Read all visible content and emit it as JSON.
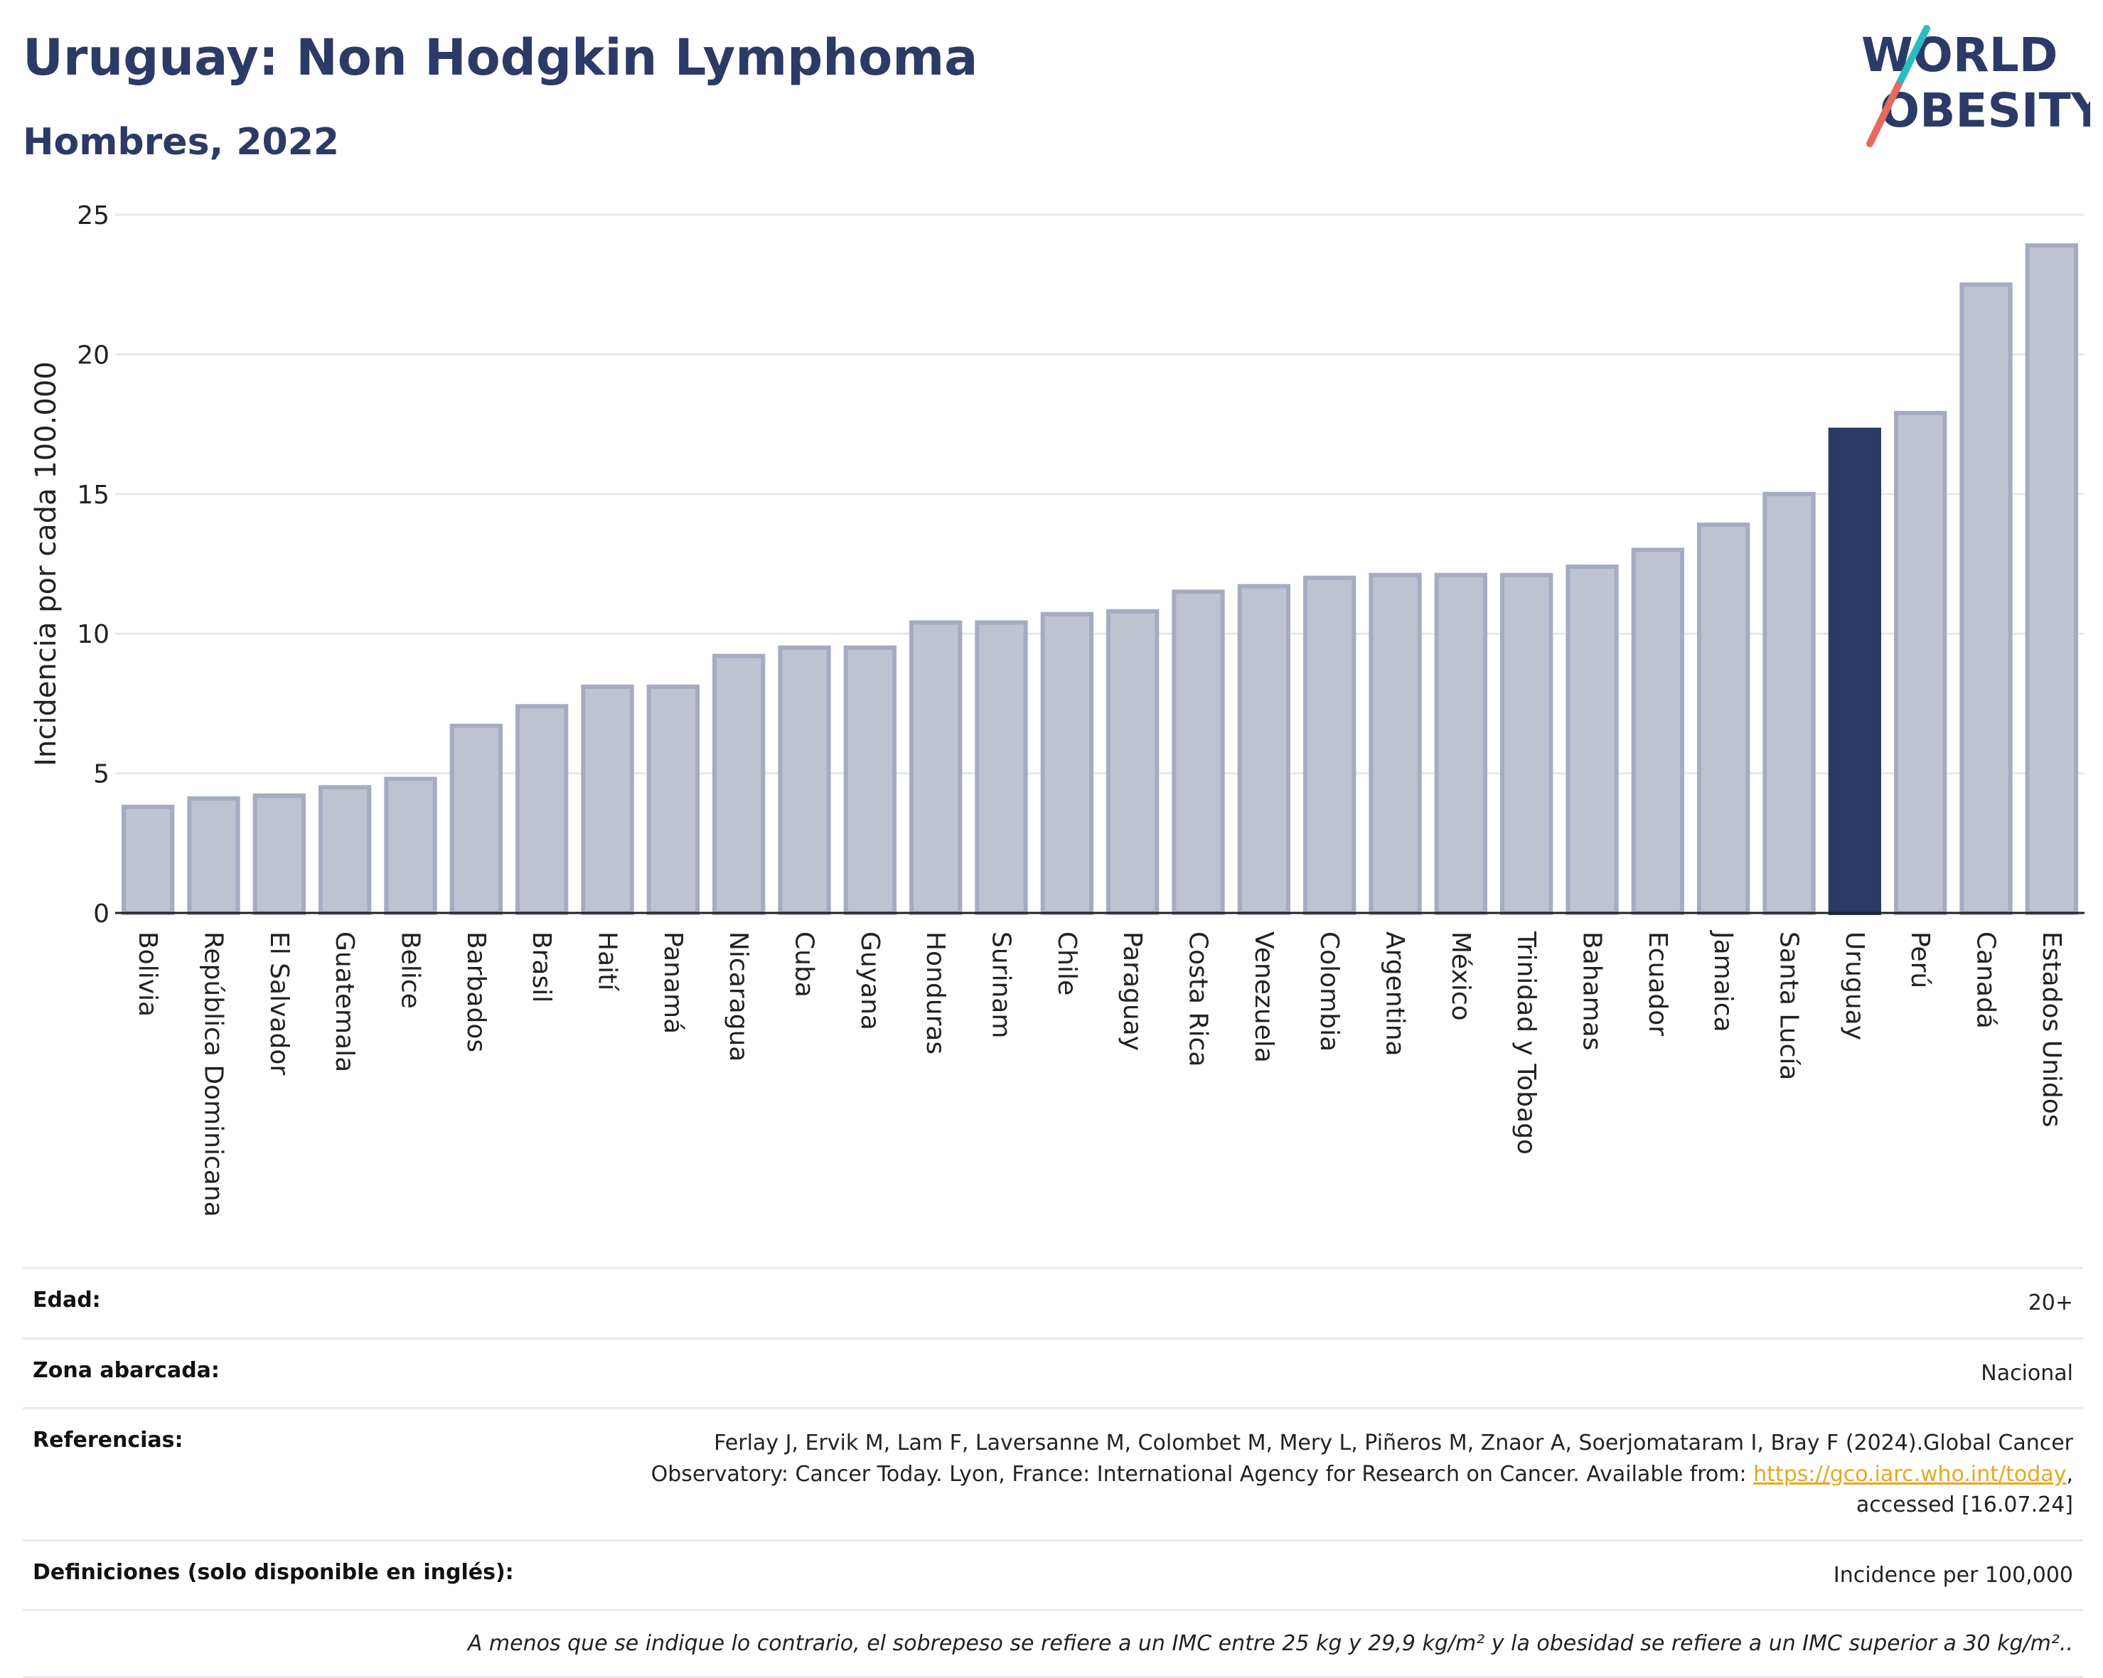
{
  "header": {
    "title": "Uruguay: Non Hodgkin Lymphoma",
    "subtitle": "Hombres, 2022"
  },
  "logo": {
    "line1": "WORLD",
    "line2": "OBESITY"
  },
  "chart_data": {
    "type": "bar",
    "ylabel": "Incidencia por cada 100.000",
    "xlabel": "",
    "ylim": [
      0,
      25
    ],
    "yticks": [
      0,
      5,
      10,
      15,
      20,
      25
    ],
    "grid": true,
    "highlight": "Uruguay",
    "colors": {
      "bar": "#bfc3d1",
      "bar_stroke": "#a5abc2",
      "highlight": "#2b3a67"
    },
    "categories": [
      "Bolivia",
      "República Dominicana",
      "El Salvador",
      "Guatemala",
      "Belice",
      "Barbados",
      "Brasil",
      "Haití",
      "Panamá",
      "Nicaragua",
      "Cuba",
      "Guyana",
      "Honduras",
      "Surinam",
      "Chile",
      "Paraguay",
      "Costa Rica",
      "Venezuela",
      "Colombia",
      "Argentina",
      "México",
      "Trinidad y Tobago",
      "Bahamas",
      "Ecuador",
      "Jamaica",
      "Santa Lucía",
      "Uruguay",
      "Perú",
      "Canadá",
      "Estados Unidos"
    ],
    "values": [
      3.8,
      4.1,
      4.2,
      4.5,
      4.8,
      6.7,
      7.4,
      8.1,
      8.1,
      9.2,
      9.5,
      9.5,
      10.4,
      10.4,
      10.7,
      10.8,
      11.5,
      11.7,
      12.0,
      12.1,
      12.1,
      12.1,
      12.4,
      13.0,
      13.9,
      15.0,
      17.3,
      17.9,
      22.5,
      23.9
    ]
  },
  "info": {
    "edad_label": "Edad:",
    "edad_value": "20+",
    "zona_label": "Zona abarcada:",
    "zona_value": "Nacional",
    "ref_label": "Referencias:",
    "ref_text1": "Ferlay J, Ervik M, Lam F, Laversanne M, Colombet M, Mery L, Piñeros M, Znaor A, Soerjomataram I, Bray F (2024).Global Cancer",
    "ref_text2": "Observatory: Cancer Today. Lyon, France: International Agency for Research on Cancer. Available from:",
    "ref_link": "https://gco.iarc.who.int/today",
    "ref_text3": "accessed [16.07.24]",
    "def_label": "Definiciones (solo disponible en inglés):",
    "def_value": "Incidence per 100,000",
    "note": "A menos que se indique lo contrario, el sobrepeso se refiere a un IMC entre 25 kg y 29,9 kg/m² y la obesidad se refiere a un IMC superior a 30 kg/m²."
  }
}
